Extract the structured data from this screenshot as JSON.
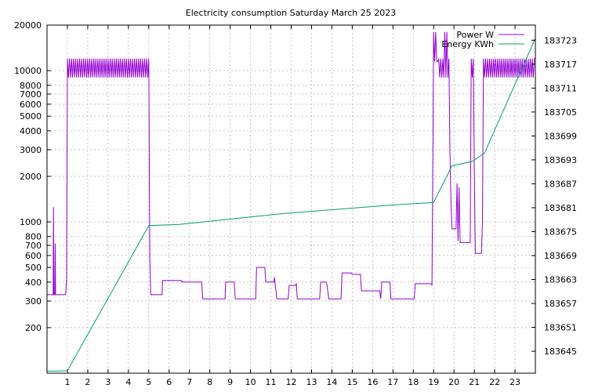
{
  "chart_data": {
    "type": "line",
    "title": "Electricity consumption Saturday March 25 2023",
    "xlabel": "",
    "ylabel": "",
    "y2label": "",
    "xlim": [
      0,
      24
    ],
    "xticks": [
      "1",
      "2",
      "3",
      "4",
      "5",
      "6",
      "7",
      "8",
      "9",
      "10",
      "11",
      "12",
      "13",
      "14",
      "15",
      "16",
      "17",
      "18",
      "19",
      "20",
      "21",
      "22",
      "23"
    ],
    "y_scale": "log",
    "ylim": [
      100,
      20000
    ],
    "yticks": [
      "200",
      "300",
      "400",
      "500",
      "600",
      "700",
      "800",
      "1000",
      "2000",
      "3000",
      "4000",
      "5000",
      "6000",
      "7000",
      "8000",
      "10000",
      "20000"
    ],
    "y2_scale": "linear",
    "y2lim": [
      183639.5,
      183726.8
    ],
    "y2ticks": [
      "183645",
      "183651",
      "183657",
      "183663",
      "183669",
      "183675",
      "183681",
      "183687",
      "183693",
      "183699",
      "183705",
      "183711",
      "183717",
      "183723"
    ],
    "grid": true,
    "legend_position": "top-right",
    "series": [
      {
        "name": "Power W",
        "axis": "left",
        "color": "#9400d3",
        "points": [
          [
            0,
            330
          ],
          [
            0.3,
            330
          ],
          [
            0.32,
            1250
          ],
          [
            0.34,
            330
          ],
          [
            0.38,
            330
          ],
          [
            0.4,
            720
          ],
          [
            0.42,
            330
          ],
          [
            0.9,
            330
          ],
          [
            0.92,
            340
          ],
          [
            0.96,
            420
          ],
          [
            1.0,
            12000
          ],
          [
            1.05,
            9000
          ],
          [
            1.1,
            12000
          ],
          [
            1.15,
            9000
          ],
          [
            1.2,
            12000
          ],
          [
            1.25,
            9000
          ],
          [
            1.3,
            12000
          ],
          [
            1.35,
            9000
          ],
          [
            1.4,
            12000
          ],
          [
            1.45,
            9000
          ],
          [
            1.5,
            12000
          ],
          [
            1.55,
            9000
          ],
          [
            1.6,
            12000
          ],
          [
            1.65,
            9000
          ],
          [
            1.7,
            12000
          ],
          [
            1.75,
            9000
          ],
          [
            1.8,
            12000
          ],
          [
            1.85,
            9000
          ],
          [
            1.9,
            12000
          ],
          [
            1.95,
            9000
          ],
          [
            2.0,
            12000
          ],
          [
            2.05,
            9000
          ],
          [
            2.1,
            12000
          ],
          [
            2.15,
            9000
          ],
          [
            2.2,
            12000
          ],
          [
            2.25,
            9000
          ],
          [
            2.3,
            12000
          ],
          [
            2.35,
            9000
          ],
          [
            2.4,
            12000
          ],
          [
            2.45,
            9000
          ],
          [
            2.5,
            12000
          ],
          [
            2.55,
            9000
          ],
          [
            2.6,
            12000
          ],
          [
            2.65,
            9000
          ],
          [
            2.7,
            12000
          ],
          [
            2.75,
            9000
          ],
          [
            2.8,
            12000
          ],
          [
            2.85,
            9000
          ],
          [
            2.9,
            12000
          ],
          [
            2.95,
            9000
          ],
          [
            3.0,
            12000
          ],
          [
            3.05,
            9000
          ],
          [
            3.1,
            12000
          ],
          [
            3.15,
            9000
          ],
          [
            3.2,
            12000
          ],
          [
            3.25,
            9000
          ],
          [
            3.3,
            12000
          ],
          [
            3.35,
            9000
          ],
          [
            3.4,
            12000
          ],
          [
            3.45,
            9000
          ],
          [
            3.5,
            12000
          ],
          [
            3.55,
            9000
          ],
          [
            3.6,
            12000
          ],
          [
            3.65,
            9000
          ],
          [
            3.7,
            12000
          ],
          [
            3.75,
            9000
          ],
          [
            3.8,
            12000
          ],
          [
            3.85,
            9000
          ],
          [
            3.9,
            12000
          ],
          [
            3.95,
            9000
          ],
          [
            4.0,
            12000
          ],
          [
            4.05,
            9000
          ],
          [
            4.1,
            12000
          ],
          [
            4.15,
            9000
          ],
          [
            4.2,
            12000
          ],
          [
            4.25,
            9000
          ],
          [
            4.3,
            12000
          ],
          [
            4.35,
            9000
          ],
          [
            4.4,
            12000
          ],
          [
            4.45,
            9000
          ],
          [
            4.5,
            12000
          ],
          [
            4.55,
            9000
          ],
          [
            4.6,
            12000
          ],
          [
            4.65,
            9000
          ],
          [
            4.7,
            12000
          ],
          [
            4.75,
            9000
          ],
          [
            4.8,
            12000
          ],
          [
            4.85,
            9000
          ],
          [
            4.9,
            12000
          ],
          [
            4.95,
            9000
          ],
          [
            5.0,
            12000
          ],
          [
            5.05,
            580
          ],
          [
            5.1,
            330
          ],
          [
            5.65,
            330
          ],
          [
            5.68,
            410
          ],
          [
            6.6,
            410
          ],
          [
            6.65,
            400
          ],
          [
            7.6,
            400
          ],
          [
            7.65,
            310
          ],
          [
            8.75,
            310
          ],
          [
            8.78,
            400
          ],
          [
            9.2,
            400
          ],
          [
            9.25,
            310
          ],
          [
            10.25,
            310
          ],
          [
            10.3,
            500
          ],
          [
            10.7,
            500
          ],
          [
            10.75,
            400
          ],
          [
            11.15,
            400
          ],
          [
            11.18,
            430
          ],
          [
            11.2,
            400
          ],
          [
            11.3,
            310
          ],
          [
            11.85,
            310
          ],
          [
            11.9,
            380
          ],
          [
            12.2,
            380
          ],
          [
            12.25,
            390
          ],
          [
            12.3,
            310
          ],
          [
            13.4,
            310
          ],
          [
            13.45,
            400
          ],
          [
            13.7,
            400
          ],
          [
            13.75,
            390
          ],
          [
            13.85,
            310
          ],
          [
            14.45,
            310
          ],
          [
            14.5,
            460
          ],
          [
            14.95,
            460
          ],
          [
            15.0,
            450
          ],
          [
            15.4,
            450
          ],
          [
            15.45,
            350
          ],
          [
            16.35,
            350
          ],
          [
            16.4,
            310
          ],
          [
            16.45,
            400
          ],
          [
            16.85,
            400
          ],
          [
            16.9,
            310
          ],
          [
            18.05,
            310
          ],
          [
            18.1,
            390
          ],
          [
            18.9,
            390
          ],
          [
            18.92,
            380
          ],
          [
            19.0,
            18000
          ],
          [
            19.05,
            11500
          ],
          [
            19.1,
            18000
          ],
          [
            19.15,
            11500
          ],
          [
            19.2,
            11500
          ],
          [
            19.25,
            12000
          ],
          [
            19.3,
            9000
          ],
          [
            19.35,
            12000
          ],
          [
            19.4,
            9000
          ],
          [
            19.45,
            12000
          ],
          [
            19.5,
            9000
          ],
          [
            19.55,
            18000
          ],
          [
            19.6,
            9000
          ],
          [
            19.65,
            18000
          ],
          [
            19.7,
            9000
          ],
          [
            19.75,
            12000
          ],
          [
            19.8,
            3000
          ],
          [
            19.85,
            1400
          ],
          [
            19.9,
            900
          ],
          [
            20.1,
            900
          ],
          [
            20.15,
            1800
          ],
          [
            20.2,
            750
          ],
          [
            20.25,
            1700
          ],
          [
            20.3,
            730
          ],
          [
            20.8,
            730
          ],
          [
            20.85,
            12000
          ],
          [
            20.9,
            9000
          ],
          [
            20.95,
            12000
          ],
          [
            21.0,
            2200
          ],
          [
            21.05,
            620
          ],
          [
            21.35,
            620
          ],
          [
            21.4,
            1000
          ],
          [
            21.45,
            12000
          ],
          [
            21.5,
            9000
          ],
          [
            21.55,
            12000
          ],
          [
            21.6,
            9000
          ],
          [
            21.65,
            12000
          ],
          [
            21.7,
            9000
          ],
          [
            21.75,
            12000
          ],
          [
            21.8,
            9000
          ],
          [
            21.85,
            12000
          ],
          [
            21.9,
            9000
          ],
          [
            21.95,
            12000
          ],
          [
            22.0,
            9000
          ],
          [
            22.05,
            12000
          ],
          [
            22.1,
            9000
          ],
          [
            22.15,
            12000
          ],
          [
            22.2,
            9000
          ],
          [
            22.25,
            12000
          ],
          [
            22.3,
            9000
          ],
          [
            22.35,
            12000
          ],
          [
            22.4,
            9000
          ],
          [
            22.45,
            12000
          ],
          [
            22.5,
            9000
          ],
          [
            22.55,
            12000
          ],
          [
            22.6,
            9000
          ],
          [
            22.65,
            12000
          ],
          [
            22.7,
            9000
          ],
          [
            22.75,
            12000
          ],
          [
            22.8,
            9000
          ],
          [
            22.85,
            12000
          ],
          [
            22.9,
            9000
          ],
          [
            22.95,
            12000
          ],
          [
            23.0,
            9000
          ],
          [
            23.05,
            12000
          ],
          [
            23.1,
            9000
          ],
          [
            23.15,
            12000
          ],
          [
            23.2,
            9000
          ],
          [
            23.25,
            12000
          ],
          [
            23.3,
            9000
          ],
          [
            23.35,
            12000
          ],
          [
            23.4,
            9000
          ],
          [
            23.45,
            12000
          ],
          [
            23.5,
            9000
          ],
          [
            23.55,
            12000
          ],
          [
            23.6,
            9000
          ],
          [
            23.65,
            12000
          ],
          [
            23.7,
            9000
          ],
          [
            23.75,
            12000
          ],
          [
            23.8,
            9000
          ],
          [
            23.85,
            12000
          ],
          [
            23.9,
            9000
          ],
          [
            23.95,
            12000
          ],
          [
            24.0,
            12000
          ]
        ]
      },
      {
        "name": "Energy KWh",
        "axis": "right",
        "color": "#009e73",
        "points": [
          [
            0,
            183640.0
          ],
          [
            1.0,
            183640.1
          ],
          [
            5.0,
            183676.5
          ],
          [
            6.5,
            183676.8
          ],
          [
            11.5,
            183679.5
          ],
          [
            17.0,
            183681.7
          ],
          [
            19.0,
            183682.3
          ],
          [
            19.9,
            183691.5
          ],
          [
            20.9,
            183692.6
          ],
          [
            21.5,
            183694.7
          ],
          [
            24.0,
            183723.5
          ]
        ]
      }
    ]
  }
}
